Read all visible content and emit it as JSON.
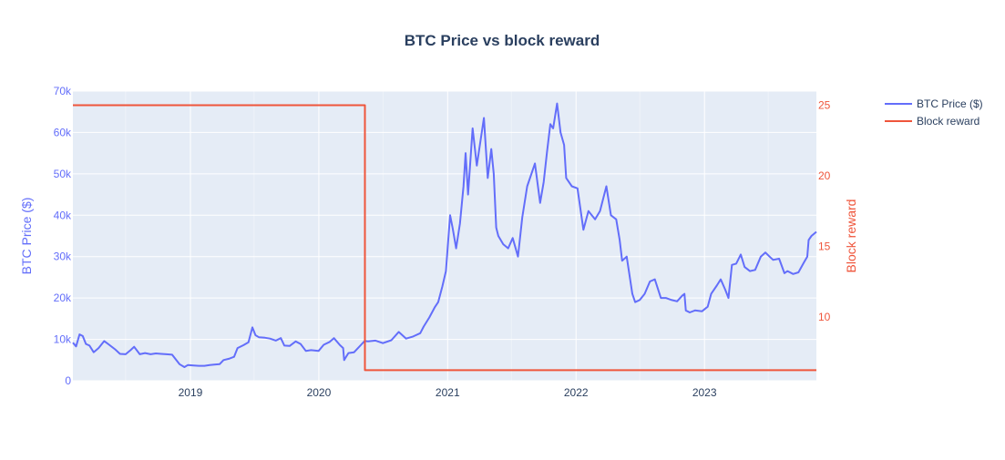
{
  "chart_data": {
    "type": "line",
    "title": "BTC Price vs block reward",
    "colors": {
      "background": "#ffffff",
      "plot_bg": "#e5ecf6",
      "grid": "#ffffff",
      "title": "#2a3f5f",
      "price": "#636efa",
      "reward": "#ef553b",
      "tick_text": "#2a3f5f"
    },
    "x_axis": {
      "type": "date",
      "range": [
        "2018-02-01",
        "2023-11-15"
      ],
      "tick_labels": [
        "2019",
        "2020",
        "2021",
        "2022",
        "2023"
      ],
      "grid": true
    },
    "y_axis_left": {
      "label": "BTC Price ($)",
      "range": [
        0,
        70000
      ],
      "tick_labels": [
        "0",
        "10k",
        "20k",
        "30k",
        "40k",
        "50k",
        "60k",
        "70k"
      ],
      "grid": true
    },
    "y_axis_right": {
      "label": "Block reward",
      "range": [
        5.5,
        26
      ],
      "tick_labels": [
        "10",
        "15",
        "20",
        "25"
      ]
    },
    "legend": {
      "placement": "top-right-outside"
    },
    "series": [
      {
        "name": "BTC Price ($)",
        "axis": "left",
        "x": [
          "2018-02-01",
          "2018-02-10",
          "2018-02-20",
          "2018-03-01",
          "2018-03-10",
          "2018-03-20",
          "2018-04-01",
          "2018-04-15",
          "2018-05-01",
          "2018-05-15",
          "2018-06-01",
          "2018-06-15",
          "2018-07-01",
          "2018-07-15",
          "2018-07-25",
          "2018-08-10",
          "2018-08-25",
          "2018-09-10",
          "2018-09-25",
          "2018-10-10",
          "2018-10-25",
          "2018-11-10",
          "2018-11-20",
          "2018-12-01",
          "2018-12-15",
          "2018-12-25",
          "2019-01-10",
          "2019-01-25",
          "2019-02-10",
          "2019-02-25",
          "2019-03-10",
          "2019-03-25",
          "2019-04-05",
          "2019-04-20",
          "2019-05-05",
          "2019-05-15",
          "2019-06-01",
          "2019-06-15",
          "2019-06-26",
          "2019-07-05",
          "2019-07-15",
          "2019-08-01",
          "2019-08-15",
          "2019-09-01",
          "2019-09-15",
          "2019-09-25",
          "2019-10-10",
          "2019-10-27",
          "2019-11-10",
          "2019-11-25",
          "2019-12-10",
          "2019-12-31",
          "2020-01-15",
          "2020-02-01",
          "2020-02-13",
          "2020-03-01",
          "2020-03-10",
          "2020-03-13",
          "2020-03-25",
          "2020-04-10",
          "2020-04-30",
          "2020-05-10",
          "2020-05-20",
          "2020-06-10",
          "2020-07-01",
          "2020-07-25",
          "2020-08-15",
          "2020-09-05",
          "2020-09-25",
          "2020-10-15",
          "2020-10-25",
          "2020-11-10",
          "2020-11-25",
          "2020-12-05",
          "2020-12-17",
          "2020-12-27",
          "2021-01-08",
          "2021-01-15",
          "2021-01-25",
          "2021-02-05",
          "2021-02-15",
          "2021-02-21",
          "2021-02-28",
          "2021-03-13",
          "2021-03-25",
          "2021-04-14",
          "2021-04-25",
          "2021-05-05",
          "2021-05-12",
          "2021-05-19",
          "2021-05-25",
          "2021-06-08",
          "2021-06-22",
          "2021-07-05",
          "2021-07-20",
          "2021-08-01",
          "2021-08-15",
          "2021-09-06",
          "2021-09-21",
          "2021-10-01",
          "2021-10-10",
          "2021-10-20",
          "2021-10-28",
          "2021-11-08",
          "2021-11-18",
          "2021-11-28",
          "2021-12-04",
          "2021-12-20",
          "2022-01-05",
          "2022-01-22",
          "2022-02-05",
          "2022-02-24",
          "2022-03-10",
          "2022-03-28",
          "2022-04-10",
          "2022-04-25",
          "2022-05-05",
          "2022-05-12",
          "2022-05-25",
          "2022-06-10",
          "2022-06-18",
          "2022-07-01",
          "2022-07-15",
          "2022-07-30",
          "2022-08-13",
          "2022-08-30",
          "2022-09-13",
          "2022-09-30",
          "2022-10-15",
          "2022-10-30",
          "2022-11-05",
          "2022-11-09",
          "2022-11-20",
          "2022-12-05",
          "2022-12-25",
          "2023-01-10",
          "2023-01-20",
          "2023-02-05",
          "2023-02-16",
          "2023-03-01",
          "2023-03-10",
          "2023-03-20",
          "2023-04-01",
          "2023-04-14",
          "2023-04-25",
          "2023-05-10",
          "2023-05-25",
          "2023-06-10",
          "2023-06-23",
          "2023-07-05",
          "2023-07-15",
          "2023-08-01",
          "2023-08-16",
          "2023-08-25",
          "2023-09-10",
          "2023-09-25",
          "2023-10-10",
          "2023-10-20",
          "2023-10-24",
          "2023-11-01",
          "2023-11-15"
        ],
        "values": [
          9200,
          8300,
          11200,
          10800,
          8900,
          8500,
          6900,
          7900,
          9600,
          8700,
          7600,
          6500,
          6400,
          7400,
          8200,
          6400,
          6700,
          6400,
          6600,
          6500,
          6400,
          6300,
          5200,
          4000,
          3300,
          3800,
          3700,
          3600,
          3600,
          3800,
          3900,
          4000,
          5000,
          5300,
          5800,
          7900,
          8600,
          9300,
          12900,
          11000,
          10500,
          10400,
          10200,
          9700,
          10300,
          8500,
          8400,
          9500,
          8900,
          7200,
          7400,
          7200,
          8700,
          9400,
          10300,
          8600,
          7900,
          5000,
          6700,
          6900,
          8700,
          9600,
          9500,
          9700,
          9100,
          9800,
          11800,
          10200,
          10700,
          11500,
          13100,
          15300,
          17700,
          19000,
          22800,
          26500,
          40000,
          37000,
          32000,
          38000,
          47000,
          55000,
          45000,
          61000,
          52000,
          63500,
          49000,
          56000,
          50000,
          37000,
          35000,
          33000,
          32000,
          34500,
          30000,
          39500,
          47000,
          52500,
          43000,
          48000,
          55000,
          62000,
          61000,
          67000,
          60000,
          57000,
          49000,
          47000,
          46500,
          36500,
          41000,
          39000,
          41000,
          47000,
          40000,
          39000,
          34000,
          29000,
          30000,
          21000,
          19000,
          19500,
          21000,
          24000,
          24500,
          20000,
          20000,
          19500,
          19200,
          20600,
          21000,
          17000,
          16500,
          17000,
          16800,
          17900,
          21000,
          23000,
          24500,
          22000,
          20000,
          28000,
          28300,
          30500,
          27500,
          26500,
          26800,
          30000,
          31000,
          30000,
          29200,
          29500,
          26000,
          26500,
          25800,
          26200,
          28500,
          30000,
          34000,
          35000,
          36000
        ]
      },
      {
        "name": "Block reward",
        "axis": "right",
        "x": [
          "2018-02-01",
          "2020-05-11",
          "2020-05-11",
          "2023-11-15"
        ],
        "values": [
          25,
          25,
          6.25,
          6.25
        ]
      }
    ]
  }
}
